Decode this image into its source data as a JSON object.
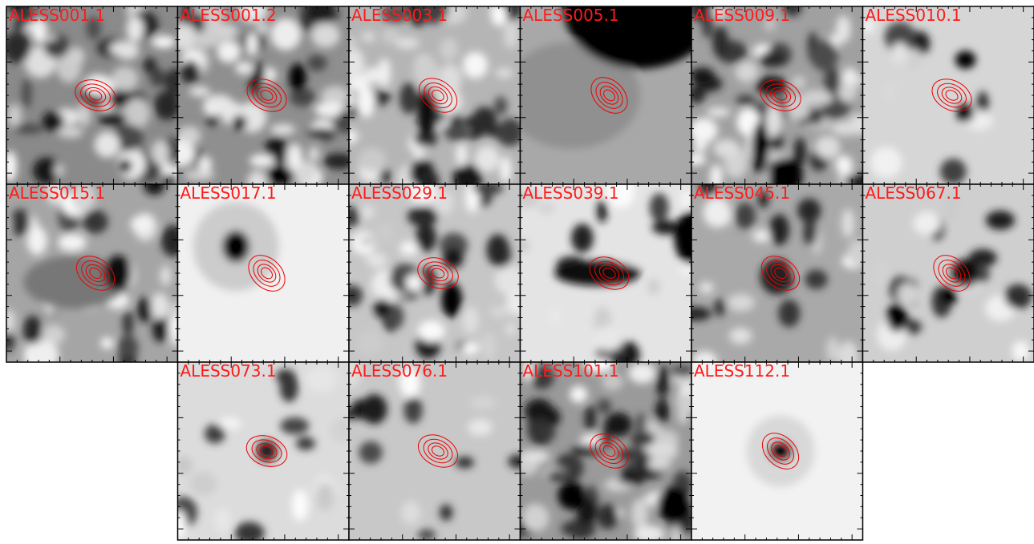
{
  "panels": [
    {
      "label": "ALESS001.1"
    },
    {
      "label": "ALESS001.2"
    },
    {
      "label": "ALESS003.1"
    },
    {
      "label": "ALESS005.1"
    },
    {
      "label": "ALESS009.1"
    },
    {
      "label": "ALESS010.1"
    },
    {
      "label": "ALESS015.1"
    },
    {
      "label": "ALESS017.1"
    },
    {
      "label": "ALESS029.1"
    },
    {
      "label": "ALESS039.1"
    },
    {
      "label": "ALESS045.1"
    },
    {
      "label": "ALESS067.1"
    },
    {
      "label": "ALESS073.1"
    },
    {
      "label": "ALESS076.1"
    },
    {
      "label": "ALESS101.1"
    },
    {
      "label": "ALESS112.1"
    }
  ]
}
